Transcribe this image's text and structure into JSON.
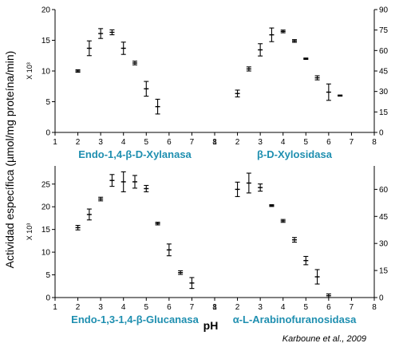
{
  "figure": {
    "ylabel": "Actividad específica (µmol/mg proteína/min)",
    "xlabel": "pH",
    "credit": "Karboune et al., 2009"
  },
  "chart_data": [
    {
      "type": "scatter",
      "title": "Endo-1,4-β-D-Xylanasa",
      "ylabel": "X 10³",
      "y_axis_side": "left",
      "xlim": [
        1,
        8
      ],
      "ylim": [
        0,
        20
      ],
      "xticks": [
        1,
        2,
        3,
        4,
        5,
        6,
        7,
        8
      ],
      "yticks": [
        0,
        5,
        10,
        15,
        20
      ],
      "x": [
        2.0,
        2.5,
        3.0,
        3.5,
        4.0,
        4.5,
        5.0,
        5.5
      ],
      "y": [
        10.0,
        13.7,
        16.1,
        16.3,
        13.7,
        11.3,
        7.1,
        4.2
      ],
      "err": [
        0.2,
        1.2,
        0.8,
        0.4,
        1.0,
        0.3,
        1.2,
        1.2
      ]
    },
    {
      "type": "scatter",
      "title": "β-D-Xylosidasa",
      "ylabel": "",
      "y_axis_side": "right",
      "xlim": [
        1,
        8
      ],
      "ylim": [
        0,
        90
      ],
      "xticks": [
        1,
        2,
        3,
        4,
        5,
        6,
        7,
        8
      ],
      "yticks": [
        0,
        15,
        30,
        45,
        60,
        75,
        90
      ],
      "x": [
        2.0,
        2.5,
        3.0,
        3.5,
        4.0,
        4.5,
        5.0,
        5.5,
        6.0,
        6.5
      ],
      "y": [
        28.5,
        46.5,
        60.5,
        71.5,
        74.0,
        67.0,
        54.0,
        40.0,
        29.5,
        27.0
      ],
      "err": [
        2.5,
        1.5,
        4.5,
        5.0,
        1.0,
        1.0,
        0.5,
        1.5,
        6.0,
        0.4
      ]
    },
    {
      "type": "scatter",
      "title": "Endo-1,3-1,4-β-Glucanasa",
      "ylabel": "X 10³",
      "y_axis_side": "left",
      "xlim": [
        1,
        8
      ],
      "ylim": [
        0,
        29
      ],
      "xticks": [
        1,
        2,
        3,
        4,
        5,
        6,
        7,
        8
      ],
      "yticks": [
        0,
        5,
        10,
        15,
        20,
        25
      ],
      "x": [
        2.0,
        2.5,
        3.0,
        3.5,
        4.0,
        4.5,
        5.0,
        5.5,
        6.0,
        6.5,
        7.0
      ],
      "y": [
        15.4,
        18.3,
        21.7,
        25.8,
        25.5,
        25.5,
        24.0,
        16.3,
        10.5,
        5.5,
        3.2
      ],
      "err": [
        0.5,
        1.2,
        0.4,
        1.3,
        2.2,
        1.4,
        0.7,
        0.3,
        1.3,
        0.4,
        1.2
      ]
    },
    {
      "type": "scatter",
      "title": "α-L-Arabinofuranosidasa",
      "ylabel": "",
      "y_axis_side": "right",
      "xlim": [
        1,
        8
      ],
      "ylim": [
        0,
        73
      ],
      "xticks": [
        1,
        2,
        3,
        4,
        5,
        6,
        7,
        8
      ],
      "yticks": [
        0,
        15,
        30,
        45,
        60
      ],
      "x": [
        2.0,
        2.5,
        3.0,
        3.5,
        4.0,
        4.5,
        5.0,
        5.5,
        6.0
      ],
      "y": [
        60.0,
        63.5,
        61.0,
        51.0,
        42.5,
        32.0,
        20.5,
        11.5,
        1.0
      ],
      "err": [
        4.0,
        5.5,
        2.0,
        0.5,
        0.8,
        1.3,
        2.3,
        4.0,
        1.0
      ]
    }
  ]
}
